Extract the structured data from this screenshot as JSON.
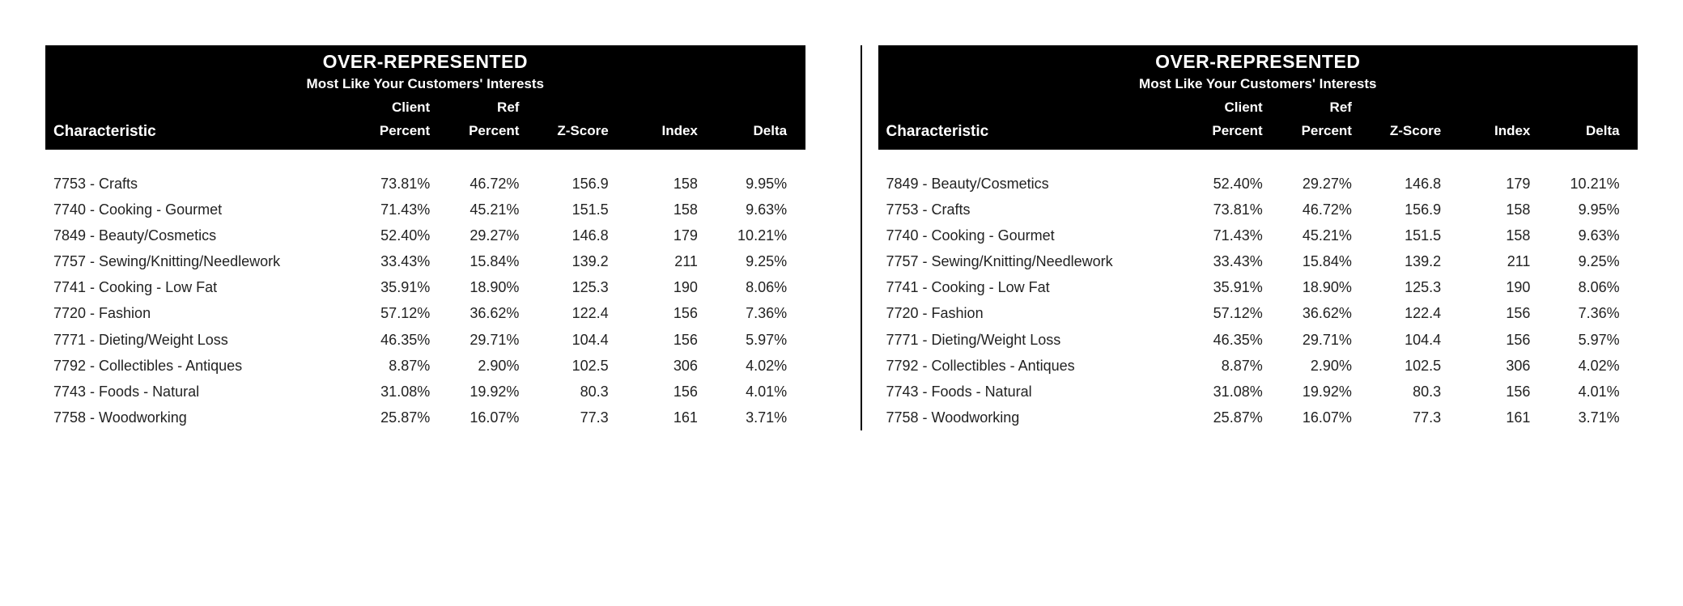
{
  "labels": {
    "title": "OVER-REPRESENTED",
    "subtitle": "Most Like Your Customers' Interests",
    "client": "Client",
    "ref": "Ref",
    "percent": "Percent",
    "characteristic": "Characteristic",
    "zscore": "Z-Score",
    "index": "Index",
    "delta": "Delta"
  },
  "styling": {
    "header_bg": "#000000",
    "header_fg": "#ffffff",
    "body_fg": "#222222",
    "title_fontsize": 23,
    "subtitle_fontsize": 17,
    "colhead_fontsize": 17,
    "row_fontsize": 18,
    "divider_color": "#000000"
  },
  "panels": [
    {
      "rows": [
        {
          "characteristic": "7753 - Crafts",
          "client_percent": "73.81%",
          "ref_percent": "46.72%",
          "zscore": "156.9",
          "index": "158",
          "delta": "9.95%"
        },
        {
          "characteristic": "7740 - Cooking - Gourmet",
          "client_percent": "71.43%",
          "ref_percent": "45.21%",
          "zscore": "151.5",
          "index": "158",
          "delta": "9.63%"
        },
        {
          "characteristic": "7849 - Beauty/Cosmetics",
          "client_percent": "52.40%",
          "ref_percent": "29.27%",
          "zscore": "146.8",
          "index": "179",
          "delta": "10.21%"
        },
        {
          "characteristic": "7757 - Sewing/Knitting/Needlework",
          "client_percent": "33.43%",
          "ref_percent": "15.84%",
          "zscore": "139.2",
          "index": "211",
          "delta": "9.25%"
        },
        {
          "characteristic": "7741 - Cooking - Low Fat",
          "client_percent": "35.91%",
          "ref_percent": "18.90%",
          "zscore": "125.3",
          "index": "190",
          "delta": "8.06%"
        },
        {
          "characteristic": "7720 - Fashion",
          "client_percent": "57.12%",
          "ref_percent": "36.62%",
          "zscore": "122.4",
          "index": "156",
          "delta": "7.36%"
        },
        {
          "characteristic": "7771 - Dieting/Weight Loss",
          "client_percent": "46.35%",
          "ref_percent": "29.71%",
          "zscore": "104.4",
          "index": "156",
          "delta": "5.97%"
        },
        {
          "characteristic": "7792 - Collectibles - Antiques",
          "client_percent": "8.87%",
          "ref_percent": "2.90%",
          "zscore": "102.5",
          "index": "306",
          "delta": "4.02%"
        },
        {
          "characteristic": "7743 - Foods - Natural",
          "client_percent": "31.08%",
          "ref_percent": "19.92%",
          "zscore": "80.3",
          "index": "156",
          "delta": "4.01%"
        },
        {
          "characteristic": "7758 - Woodworking",
          "client_percent": "25.87%",
          "ref_percent": "16.07%",
          "zscore": "77.3",
          "index": "161",
          "delta": "3.71%"
        }
      ]
    },
    {
      "rows": [
        {
          "characteristic": "7849 - Beauty/Cosmetics",
          "client_percent": "52.40%",
          "ref_percent": "29.27%",
          "zscore": "146.8",
          "index": "179",
          "delta": "10.21%"
        },
        {
          "characteristic": "7753 - Crafts",
          "client_percent": "73.81%",
          "ref_percent": "46.72%",
          "zscore": "156.9",
          "index": "158",
          "delta": "9.95%"
        },
        {
          "characteristic": "7740 - Cooking - Gourmet",
          "client_percent": "71.43%",
          "ref_percent": "45.21%",
          "zscore": "151.5",
          "index": "158",
          "delta": "9.63%"
        },
        {
          "characteristic": "7757 - Sewing/Knitting/Needlework",
          "client_percent": "33.43%",
          "ref_percent": "15.84%",
          "zscore": "139.2",
          "index": "211",
          "delta": "9.25%"
        },
        {
          "characteristic": "7741 - Cooking - Low Fat",
          "client_percent": "35.91%",
          "ref_percent": "18.90%",
          "zscore": "125.3",
          "index": "190",
          "delta": "8.06%"
        },
        {
          "characteristic": "7720 - Fashion",
          "client_percent": "57.12%",
          "ref_percent": "36.62%",
          "zscore": "122.4",
          "index": "156",
          "delta": "7.36%"
        },
        {
          "characteristic": "7771 - Dieting/Weight Loss",
          "client_percent": "46.35%",
          "ref_percent": "29.71%",
          "zscore": "104.4",
          "index": "156",
          "delta": "5.97%"
        },
        {
          "characteristic": "7792 - Collectibles - Antiques",
          "client_percent": "8.87%",
          "ref_percent": "2.90%",
          "zscore": "102.5",
          "index": "306",
          "delta": "4.02%"
        },
        {
          "characteristic": "7743 - Foods - Natural",
          "client_percent": "31.08%",
          "ref_percent": "19.92%",
          "zscore": "80.3",
          "index": "156",
          "delta": "4.01%"
        },
        {
          "characteristic": "7758 - Woodworking",
          "client_percent": "25.87%",
          "ref_percent": "16.07%",
          "zscore": "77.3",
          "index": "161",
          "delta": "3.71%"
        }
      ]
    }
  ]
}
